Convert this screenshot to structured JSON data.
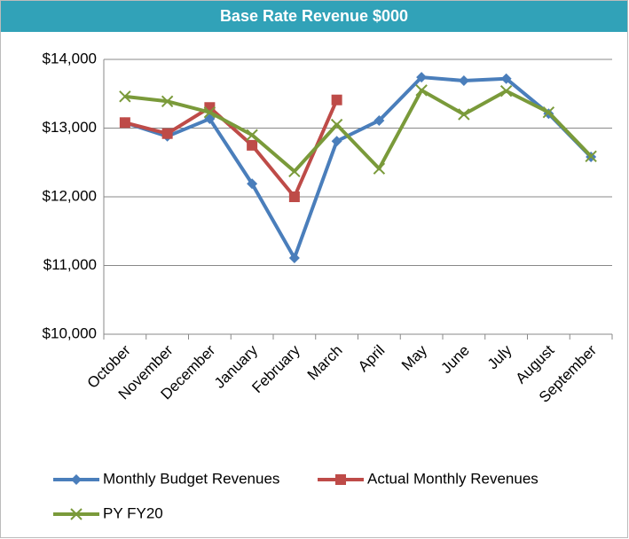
{
  "chart_data": {
    "type": "line",
    "title": "Base Rate Revenue $000",
    "categories": [
      "October",
      "November",
      "December",
      "January",
      "February",
      "March",
      "April",
      "May",
      "June",
      "July",
      "August",
      "September"
    ],
    "series": [
      {
        "name": "Monthly Budget Revenues",
        "color": "#4a7ebb",
        "marker": "diamond",
        "values": [
          13080,
          12880,
          13135,
          12190,
          11110,
          12810,
          13110,
          13740,
          13690,
          13720,
          13210,
          12580
        ]
      },
      {
        "name": "Actual Monthly Revenues",
        "color": "#be4b48",
        "marker": "square",
        "values": [
          13080,
          12920,
          13300,
          12750,
          12000,
          13410,
          null,
          null,
          null,
          null,
          null,
          null
        ]
      },
      {
        "name": "PY FY20",
        "color": "#7a9a3a",
        "marker": "x",
        "values": [
          13460,
          13390,
          13230,
          12900,
          12370,
          13050,
          12410,
          13550,
          13200,
          13540,
          13230,
          12590
        ]
      }
    ],
    "ylim": [
      10000,
      14000
    ],
    "yticks": [
      {
        "value": 10000,
        "label": "$10,000"
      },
      {
        "value": 11000,
        "label": "$11,000"
      },
      {
        "value": 12000,
        "label": "$12,000"
      },
      {
        "value": 13000,
        "label": "$13,000"
      },
      {
        "value": 14000,
        "label": "$14,000"
      }
    ],
    "grid": true,
    "legend": "bottom"
  }
}
